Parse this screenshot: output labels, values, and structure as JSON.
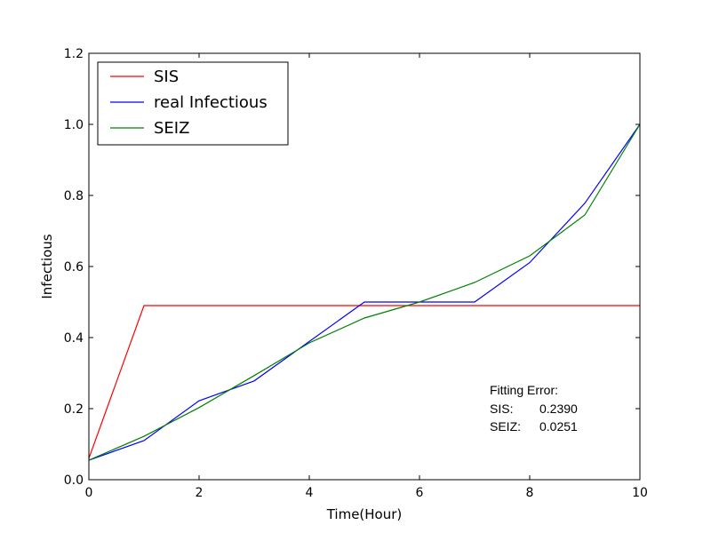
{
  "chart_data": {
    "type": "line",
    "title": "",
    "xlabel": "Time(Hour)",
    "ylabel": "Infectious",
    "xlim": [
      0,
      10
    ],
    "ylim": [
      0,
      1.2
    ],
    "xticks": [
      0,
      2,
      4,
      6,
      8,
      10
    ],
    "xtick_labels": [
      "0",
      "2",
      "4",
      "6",
      "8",
      "10"
    ],
    "yticks": [
      0,
      0.2,
      0.4,
      0.6,
      0.8,
      1.0,
      1.2
    ],
    "ytick_labels": [
      "0.0",
      "0.2",
      "0.4",
      "0.6",
      "0.8",
      "1.0",
      "1.2"
    ],
    "grid": false,
    "legend_position": "top-left",
    "series": [
      {
        "name": "SIS",
        "color": "#ff0000",
        "x": [
          0,
          1,
          2,
          3,
          4,
          5,
          6,
          7,
          8,
          9,
          10
        ],
        "y": [
          0.06,
          0.49,
          0.49,
          0.49,
          0.49,
          0.49,
          0.49,
          0.49,
          0.49,
          0.49,
          0.49
        ]
      },
      {
        "name": "real Infectious",
        "color": "#0000ff",
        "x": [
          0,
          1,
          2,
          3,
          4,
          5,
          6,
          7,
          8,
          9,
          10
        ],
        "y": [
          0.055,
          0.11,
          0.222,
          0.278,
          0.389,
          0.5,
          0.5,
          0.5,
          0.611,
          0.778,
          1.0
        ]
      },
      {
        "name": "SEIZ",
        "color": "#008000",
        "x": [
          0,
          1,
          2,
          3,
          4,
          5,
          6,
          7,
          8,
          9,
          10
        ],
        "y": [
          0.055,
          0.122,
          0.203,
          0.293,
          0.385,
          0.455,
          0.5,
          0.555,
          0.63,
          0.745,
          1.0
        ]
      }
    ],
    "annotation": {
      "title": "Fitting Error:",
      "rows": [
        {
          "label": "SIS:",
          "value": "0.2390"
        },
        {
          "label": "SEIZ:",
          "value": "0.0251"
        }
      ]
    }
  }
}
